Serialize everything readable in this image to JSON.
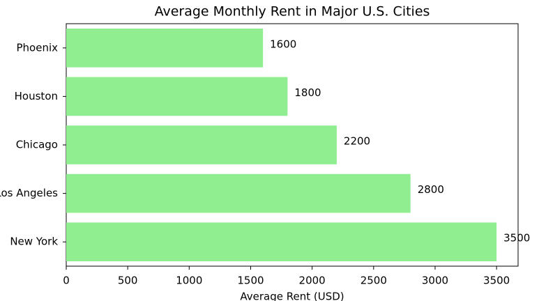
{
  "chart_data": {
    "type": "barh",
    "title": "Average Monthly Rent in Major U.S. Cities",
    "xlabel": "Average Rent (USD)",
    "categories": [
      "New York",
      "Los Angeles",
      "Chicago",
      "Houston",
      "Phoenix"
    ],
    "values": [
      3500,
      2800,
      2200,
      1800,
      1600
    ],
    "color": "#90ee90",
    "xlim": [
      0,
      3675
    ],
    "xticks": [
      0,
      500,
      1000,
      1500,
      2000,
      2500,
      3000,
      3500
    ],
    "data_labels": true
  }
}
